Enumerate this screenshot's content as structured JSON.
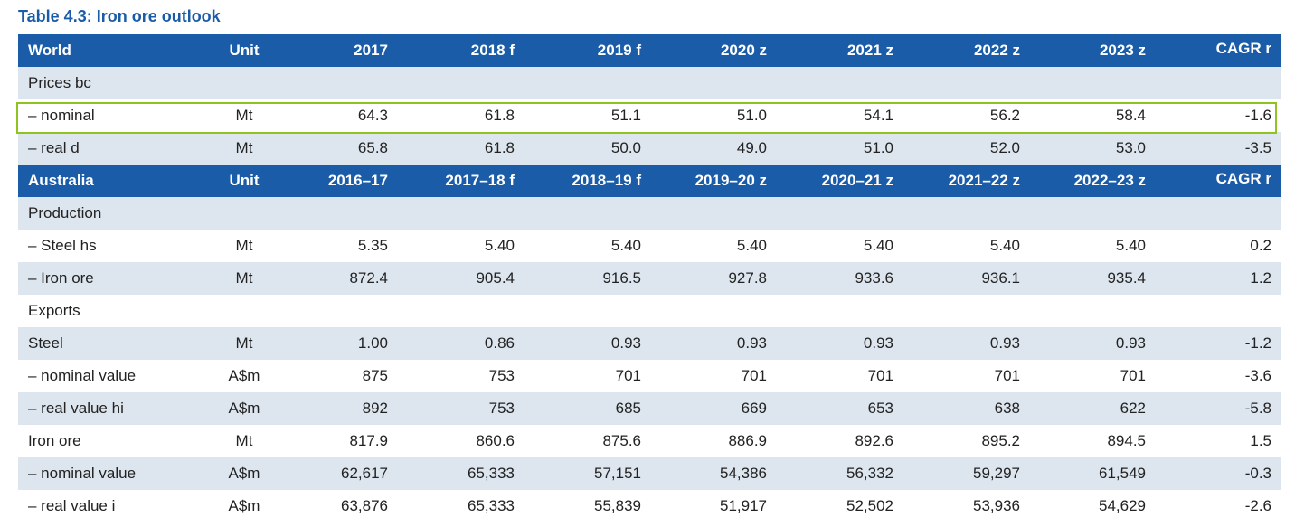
{
  "title": "Table 4.3: Iron ore outlook",
  "world_header": [
    "World",
    "Unit",
    "2017",
    "2018 f",
    "2019 f",
    "2020 z",
    "2021 z",
    "2022 z",
    "2023 z",
    "CAGR r"
  ],
  "australia_header": [
    "Australia",
    "Unit",
    "2016–17",
    "2017–18 f",
    "2018–19 f",
    "2019–20 z",
    "2020–21 z",
    "2021–22 z",
    "2022–23 z",
    "CAGR r"
  ],
  "world_rows": [
    {
      "label": "Prices bc",
      "unit": "",
      "values": [
        "",
        "",
        "",
        "",
        "",
        "",
        "",
        ""
      ]
    },
    {
      "label": "– nominal",
      "unit": "Mt",
      "values": [
        "64.3",
        "61.8",
        "51.1",
        "51.0",
        "54.1",
        "56.2",
        "58.4",
        "-1.6"
      ]
    },
    {
      "label": "– real  d",
      "unit": "Mt",
      "values": [
        "65.8",
        "61.8",
        "50.0",
        "49.0",
        "51.0",
        "52.0",
        "53.0",
        "-3.5"
      ]
    }
  ],
  "australia_rows": [
    {
      "label": "Production",
      "unit": "",
      "values": [
        "",
        "",
        "",
        "",
        "",
        "",
        "",
        ""
      ]
    },
    {
      "label": "– Steel hs",
      "unit": "Mt",
      "values": [
        "5.35",
        "5.40",
        "5.40",
        "5.40",
        "5.40",
        "5.40",
        "5.40",
        "0.2"
      ]
    },
    {
      "label": "– Iron ore",
      "unit": "Mt",
      "values": [
        "872.4",
        "905.4",
        "916.5",
        "927.8",
        "933.6",
        "936.1",
        "935.4",
        "1.2"
      ]
    },
    {
      "label": "Exports",
      "unit": "",
      "values": [
        "",
        "",
        "",
        "",
        "",
        "",
        "",
        ""
      ]
    },
    {
      "label": "Steel",
      "unit": "Mt",
      "values": [
        "1.00",
        "0.86",
        "0.93",
        "0.93",
        "0.93",
        "0.93",
        "0.93",
        "-1.2"
      ]
    },
    {
      "label": "– nominal value",
      "unit": "A$m",
      "values": [
        "875",
        "753",
        "701",
        "701",
        "701",
        "701",
        "701",
        "-3.6"
      ]
    },
    {
      "label": "– real value  hi",
      "unit": "A$m",
      "values": [
        "892",
        "753",
        "685",
        "669",
        "653",
        "638",
        "622",
        "-5.8"
      ]
    },
    {
      "label": "Iron ore",
      "unit": "Mt",
      "values": [
        "817.9",
        "860.6",
        "875.6",
        "886.9",
        "892.6",
        "895.2",
        "894.5",
        "1.5"
      ]
    },
    {
      "label": "– nominal value",
      "unit": "A$m",
      "values": [
        "62,617",
        "65,333",
        "57,151",
        "54,386",
        "56,332",
        "59,297",
        "61,549",
        "-0.3"
      ]
    },
    {
      "label": "– real value  i",
      "unit": "A$m",
      "values": [
        "63,876",
        "65,333",
        "55,839",
        "51,917",
        "52,502",
        "53,936",
        "54,629",
        "-2.6"
      ]
    }
  ],
  "colors": {
    "header_bg": "#1a5ca8",
    "shade_bg": "#dde6ef",
    "highlight_border": "#8fc31f"
  }
}
